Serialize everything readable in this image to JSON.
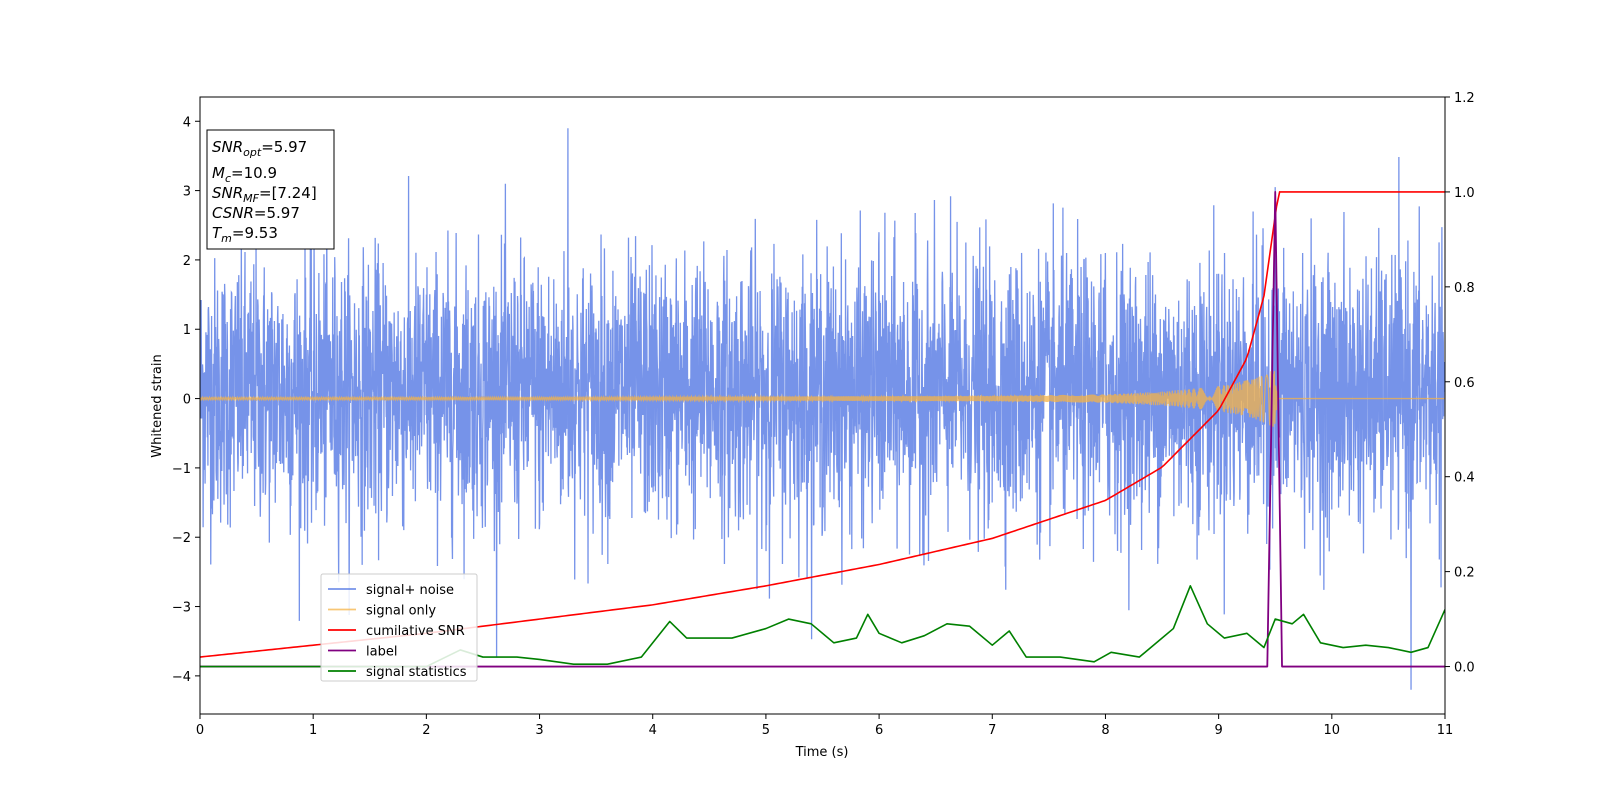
{
  "chart_data": {
    "type": "line",
    "xlabel": "Time (s)",
    "ylabel_left": "Whitened strain",
    "ylabel_right": "",
    "xlim": [
      0,
      11
    ],
    "ylim_left": [
      -4.55,
      4.35
    ],
    "ylim_right": [
      -0.1,
      1.2
    ],
    "xticks": [
      "0",
      "1",
      "2",
      "3",
      "4",
      "5",
      "6",
      "7",
      "8",
      "9",
      "10",
      "11"
    ],
    "yticks_left": [
      "4",
      "3",
      "2",
      "1",
      "0",
      "−1",
      "−2",
      "−3",
      "−4"
    ],
    "yticks_right": [
      "1.2",
      "1.0",
      "0.8",
      "0.6",
      "0.4",
      "0.2",
      "0.0"
    ],
    "grid": false,
    "legend_position": "lower-left",
    "annotation": {
      "snr_opt": {
        "base": "SNR",
        "sub": "opt",
        "value": "=5.97"
      },
      "mc": {
        "base": "M",
        "sub": "c",
        "value": "=10.9"
      },
      "snr_mf": {
        "base": "SNR",
        "sub": "MF",
        "value": "=[7.24]"
      },
      "csnr": {
        "base": "CSNR",
        "value": "=5.97"
      },
      "tm": {
        "base": "T",
        "sub": "m",
        "value": "=9.53"
      }
    },
    "series": [
      {
        "name": "signal+ noise",
        "axis": "left",
        "color": "#4169e1",
        "note": "dense noise sampled across 0–11 s, roughly between −2 and +2.5 with spikes to about ±3.5",
        "points": [
          [
            0,
            0.8
          ],
          [
            1,
            -1.2
          ],
          [
            2,
            1.5
          ],
          [
            3,
            -1.8
          ],
          [
            3.25,
            3.95
          ],
          [
            4,
            1.0
          ],
          [
            5,
            -2.2
          ],
          [
            6,
            2.4
          ],
          [
            7,
            -1.5
          ],
          [
            8,
            2.1
          ],
          [
            9,
            1.8
          ],
          [
            9.5,
            3.05
          ],
          [
            10,
            -1.6
          ],
          [
            10.7,
            -4.2
          ],
          [
            11,
            0.5
          ]
        ]
      },
      {
        "name": "signal only",
        "axis": "left",
        "color": "#f5b347",
        "note": "inspiral chirp with amplitude growing toward the merger near 9.5 s, then flat at zero",
        "envelope": [
          [
            0,
            0.02
          ],
          [
            3,
            0.02
          ],
          [
            5,
            0.03
          ],
          [
            7,
            0.04
          ],
          [
            8,
            0.06
          ],
          [
            8.5,
            0.1
          ],
          [
            9,
            0.18
          ],
          [
            9.3,
            0.28
          ],
          [
            9.5,
            0.42
          ],
          [
            9.52,
            0.0
          ],
          [
            11,
            0.0
          ]
        ]
      },
      {
        "name": "cumilative SNR",
        "axis": "right",
        "color": "#ff0000",
        "points": [
          [
            0,
            0.02
          ],
          [
            1,
            0.045
          ],
          [
            2,
            0.07
          ],
          [
            3,
            0.1
          ],
          [
            4,
            0.13
          ],
          [
            5,
            0.17
          ],
          [
            6,
            0.215
          ],
          [
            7,
            0.27
          ],
          [
            8,
            0.35
          ],
          [
            8.5,
            0.42
          ],
          [
            9,
            0.54
          ],
          [
            9.25,
            0.65
          ],
          [
            9.4,
            0.78
          ],
          [
            9.5,
            0.95
          ],
          [
            9.53,
            1.0
          ],
          [
            11,
            1.0
          ]
        ]
      },
      {
        "name": "label",
        "axis": "right",
        "color": "#800080",
        "points": [
          [
            0,
            0.0
          ],
          [
            9.43,
            0.0
          ],
          [
            9.5,
            1.0
          ],
          [
            9.56,
            0.0
          ],
          [
            11,
            0.0
          ]
        ]
      },
      {
        "name": "signal statistics",
        "axis": "right",
        "color": "#008000",
        "points": [
          [
            0,
            0.0
          ],
          [
            0.5,
            0.0
          ],
          [
            1,
            0.0
          ],
          [
            1.5,
            0.0
          ],
          [
            2,
            0.0
          ],
          [
            2.3,
            0.035
          ],
          [
            2.5,
            0.02
          ],
          [
            2.8,
            0.02
          ],
          [
            3,
            0.015
          ],
          [
            3.3,
            0.005
          ],
          [
            3.6,
            0.005
          ],
          [
            3.9,
            0.02
          ],
          [
            4.15,
            0.095
          ],
          [
            4.3,
            0.06
          ],
          [
            4.5,
            0.06
          ],
          [
            4.7,
            0.06
          ],
          [
            5,
            0.08
          ],
          [
            5.2,
            0.1
          ],
          [
            5.4,
            0.09
          ],
          [
            5.6,
            0.05
          ],
          [
            5.8,
            0.06
          ],
          [
            5.9,
            0.11
          ],
          [
            6,
            0.07
          ],
          [
            6.2,
            0.05
          ],
          [
            6.4,
            0.065
          ],
          [
            6.6,
            0.09
          ],
          [
            6.8,
            0.085
          ],
          [
            7,
            0.045
          ],
          [
            7.15,
            0.075
          ],
          [
            7.3,
            0.02
          ],
          [
            7.6,
            0.02
          ],
          [
            7.9,
            0.01
          ],
          [
            8.05,
            0.03
          ],
          [
            8.3,
            0.02
          ],
          [
            8.6,
            0.08
          ],
          [
            8.75,
            0.17
          ],
          [
            8.9,
            0.09
          ],
          [
            9.05,
            0.06
          ],
          [
            9.25,
            0.07
          ],
          [
            9.4,
            0.04
          ],
          [
            9.5,
            0.1
          ],
          [
            9.65,
            0.09
          ],
          [
            9.75,
            0.11
          ],
          [
            9.9,
            0.05
          ],
          [
            10.1,
            0.04
          ],
          [
            10.3,
            0.045
          ],
          [
            10.5,
            0.04
          ],
          [
            10.7,
            0.03
          ],
          [
            10.85,
            0.04
          ],
          [
            11,
            0.12
          ]
        ]
      }
    ]
  }
}
